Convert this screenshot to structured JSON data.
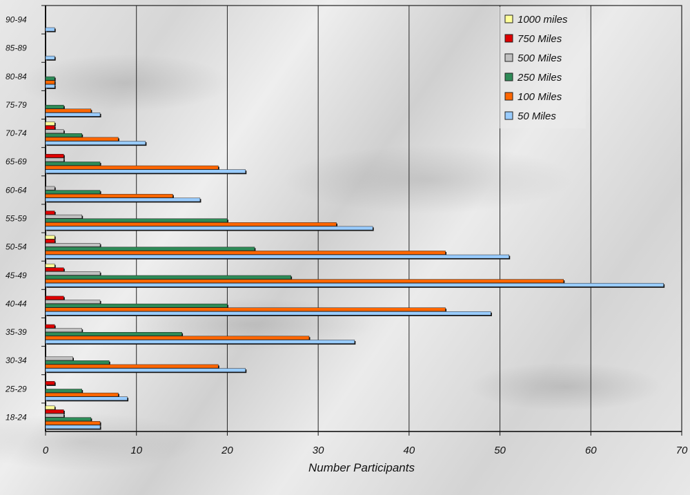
{
  "chart_data": {
    "type": "bar",
    "orientation": "horizontal",
    "title": "",
    "xlabel": "Number Participants",
    "ylabel": "",
    "xlim": [
      0,
      70
    ],
    "xticks": [
      0,
      10,
      20,
      30,
      40,
      50,
      60,
      70
    ],
    "grid": "vertical",
    "legend_position": "top-right",
    "categories": [
      "18-24",
      "25-29",
      "30-34",
      "35-39",
      "40-44",
      "45-49",
      "50-54",
      "55-59",
      "60-64",
      "65-69",
      "70-74",
      "75-79",
      "80-84",
      "85-89",
      "90-94"
    ],
    "series": [
      {
        "name": "1000 miles",
        "color": "#ffff99",
        "values": [
          1,
          0,
          0,
          0,
          0,
          1,
          1,
          0,
          0,
          0,
          1,
          0,
          0,
          0,
          0
        ]
      },
      {
        "name": "750 Miles",
        "color": "#dd0000",
        "values": [
          2,
          1,
          0,
          1,
          2,
          2,
          1,
          1,
          0,
          2,
          1,
          0,
          0,
          0,
          0
        ]
      },
      {
        "name": "500 Miles",
        "color": "#c0c0c0",
        "values": [
          2,
          0,
          3,
          4,
          6,
          6,
          6,
          4,
          1,
          2,
          2,
          0,
          0,
          0,
          0
        ]
      },
      {
        "name": "250 Miles",
        "color": "#2e8b57",
        "values": [
          5,
          4,
          7,
          15,
          20,
          27,
          23,
          20,
          6,
          6,
          4,
          2,
          1,
          0,
          0
        ]
      },
      {
        "name": "100 Miles",
        "color": "#ff6600",
        "values": [
          6,
          8,
          19,
          29,
          44,
          57,
          44,
          32,
          14,
          19,
          8,
          5,
          1,
          0,
          0
        ]
      },
      {
        "name": "50 Miles",
        "color": "#99ccff",
        "values": [
          6,
          9,
          22,
          34,
          49,
          68,
          51,
          36,
          17,
          22,
          11,
          6,
          1,
          1,
          1
        ]
      }
    ]
  }
}
